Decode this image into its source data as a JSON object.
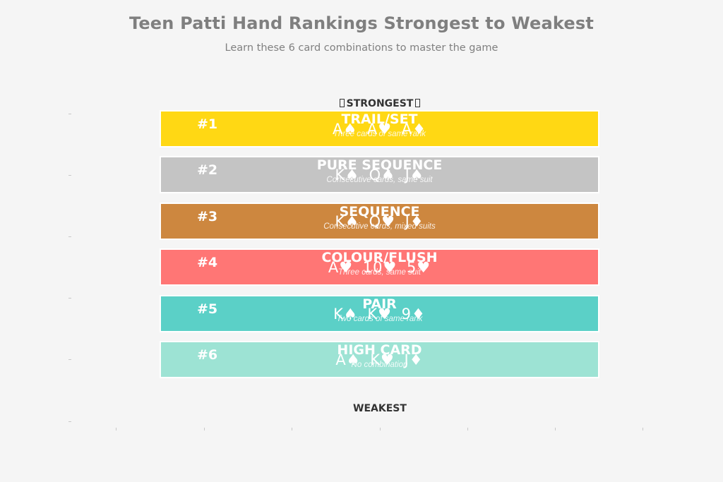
{
  "header": {
    "title": "Teen Patti Hand Rankings Strongest to Weakest",
    "subtitle": "Learn these 6 card combinations to master the game"
  },
  "labels": {
    "top": "STRONGEST",
    "bottom": "WEAKEST",
    "top_icon": "missing-glyph-box"
  },
  "chart_data": {
    "type": "bar",
    "orientation": "horizontal",
    "title": "Teen Patti Hand Rankings Strongest to Weakest",
    "subtitle": "Learn these 6 card combinations to master the game",
    "xlabel": "",
    "ylabel": "",
    "grid": false,
    "legend": null,
    "categories": [
      "TRAIL/SET",
      "PURE SEQUENCE",
      "SEQUENCE",
      "COLOUR/FLUSH",
      "PAIR",
      "HIGH CARD"
    ],
    "values": [
      1,
      1,
      1,
      1,
      1,
      1
    ],
    "annotations": [
      "STRONGEST (top)",
      "WEAKEST (bottom)"
    ],
    "bars": [
      {
        "rank": "#1",
        "name": "TRAIL/SET",
        "cards": "A♠ A♥ A♦",
        "description": "Three cards of same rank",
        "color": "#FFD814"
      },
      {
        "rank": "#2",
        "name": "PURE SEQUENCE",
        "cards": "K♠ Q♠ J♠",
        "description": "Consecutive cards, same suit",
        "color": "#C4C4C4"
      },
      {
        "rank": "#3",
        "name": "SEQUENCE",
        "cards": "K♠ Q♥ J♦",
        "description": "Consecutive cards, mixed suits",
        "color": "#CD873F"
      },
      {
        "rank": "#4",
        "name": "COLOUR/FLUSH",
        "cards": "A♥ 10♥ 5♥",
        "description": "Three cards, same suit",
        "color": "#FF7675"
      },
      {
        "rank": "#5",
        "name": "PAIR",
        "cards": "K♠ K♥ 9♦",
        "description": "Two cards of same rank",
        "color": "#5BD0C7"
      },
      {
        "rank": "#6",
        "name": "HIGH CARD",
        "cards": "A♠ K♥ J♦",
        "description": "No combination",
        "color": "#9DE3D4"
      }
    ]
  }
}
